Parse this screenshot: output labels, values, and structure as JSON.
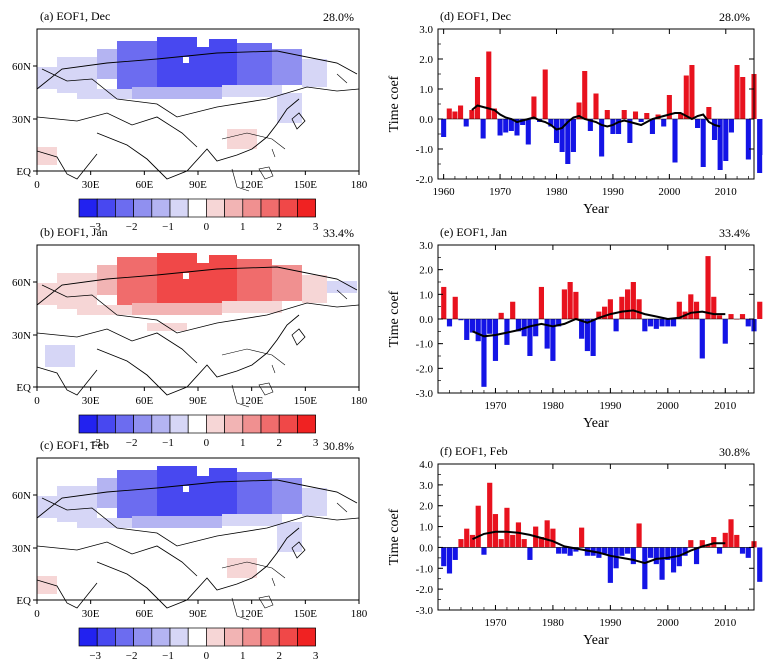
{
  "colors": {
    "positive": "#e8121e",
    "negative": "#1414e6",
    "curve": "#000000"
  },
  "colorbar": {
    "labels": [
      "−3",
      "−2",
      "−1",
      "0",
      "1",
      "2",
      "3"
    ],
    "colors": [
      "#2222f0",
      "#4848f0",
      "#6c6cf0",
      "#9090f0",
      "#b4b4f2",
      "#d6d6f6",
      "#ffffff",
      "#f6d6d6",
      "#f2b4b4",
      "#f09090",
      "#f06c6c",
      "#f04848",
      "#f02222"
    ]
  },
  "maps": [
    {
      "panel": "(a) EOF1, Dec",
      "pct": "28.0%",
      "pattern": "negative"
    },
    {
      "panel": "(b) EOF1, Jan",
      "pct": "33.4%",
      "pattern": "positive"
    },
    {
      "panel": "(c) EOF1, Feb",
      "pct": "30.8%",
      "pattern": "negative"
    }
  ],
  "map_axes": {
    "xticks": [
      "0",
      "30E",
      "60E",
      "90E",
      "120E",
      "150E",
      "180"
    ],
    "yticks": [
      "60N",
      "30N",
      "EQ"
    ]
  },
  "chart_data": [
    {
      "type": "bar",
      "panel": "(d) EOF1, Dec",
      "pct": "28.0%",
      "xlabel": "Year",
      "ylabel": "Time coef",
      "xlim": [
        1959,
        2015
      ],
      "ylim": [
        -2.0,
        3.0
      ],
      "yticks": [
        3.0,
        2.0,
        1.0,
        0.0,
        -1.0,
        -2.0
      ],
      "ytick_labels": [
        "3.0",
        "2.0",
        "1.0",
        "0.0",
        "-1.0",
        "-2.0"
      ],
      "xticks": [
        1960,
        1970,
        1980,
        1990,
        2000,
        2010
      ],
      "start_year": 1960,
      "values": [
        -0.6,
        0.35,
        0.25,
        0.45,
        -0.25,
        0.3,
        1.4,
        -0.65,
        2.25,
        0.35,
        -0.55,
        -0.45,
        -0.4,
        -0.55,
        -0.2,
        -0.85,
        0.75,
        -0.1,
        1.65,
        -0.25,
        -0.8,
        -1.1,
        -1.5,
        -1.1,
        0.55,
        1.6,
        -0.4,
        0.85,
        -1.25,
        0.3,
        -0.5,
        -0.5,
        0.3,
        -0.8,
        0.25,
        -0.1,
        0.2,
        -0.5,
        0.15,
        -0.25,
        0.8,
        -1.45,
        0.2,
        1.45,
        1.8,
        -0.3,
        -1.6,
        0.4,
        -0.7,
        -1.7,
        -1.4,
        -0.45,
        1.8,
        1.4,
        -1.35,
        1.5,
        -1.8,
        -1.2
      ],
      "running_mean": {
        "x": [
          1965,
          1966,
          1967,
          1968,
          1969,
          1970,
          1971,
          1972,
          1973,
          1974,
          1975,
          1976,
          1977,
          1978,
          1979,
          1980,
          1981,
          1982,
          1983,
          1984,
          1985,
          1986,
          1987,
          1988,
          1989,
          1990,
          1991,
          1992,
          1993,
          1994,
          1995,
          1996,
          1997,
          1998,
          1999,
          2000,
          2001,
          2002,
          2003,
          2004,
          2005,
          2006,
          2007,
          2008,
          2009
        ],
        "y": [
          0.3,
          0.45,
          0.4,
          0.35,
          0.3,
          0.15,
          0.05,
          0.0,
          -0.1,
          -0.05,
          0.0,
          0.05,
          -0.05,
          -0.1,
          -0.2,
          -0.35,
          -0.3,
          -0.1,
          0.05,
          0.1,
          0.0,
          -0.05,
          -0.1,
          -0.2,
          -0.25,
          -0.2,
          -0.1,
          -0.05,
          -0.1,
          -0.15,
          -0.2,
          -0.1,
          0.0,
          0.05,
          0.1,
          0.15,
          0.2,
          0.2,
          0.1,
          0.0,
          0.1,
          0.15,
          -0.1,
          -0.2,
          -0.25
        ]
      }
    },
    {
      "type": "bar",
      "panel": "(e) EOF1, Jan",
      "pct": "33.4%",
      "xlabel": "Year",
      "ylabel": "Time coef",
      "xlim": [
        1960,
        2015
      ],
      "ylim": [
        -3.0,
        3.0
      ],
      "yticks": [
        3.0,
        2.0,
        1.0,
        0.0,
        -1.0,
        -2.0,
        -3.0
      ],
      "ytick_labels": [
        "3.0",
        "2.0",
        "1.0",
        "0.0",
        "-1.0",
        "-2.0",
        "-3.0"
      ],
      "xticks": [
        1970,
        1980,
        1990,
        2000,
        2010
      ],
      "start_year": 1961,
      "values": [
        1.3,
        -0.3,
        0.9,
        -0.05,
        -0.85,
        -0.55,
        -0.9,
        -2.75,
        -0.6,
        -1.7,
        0.25,
        -1.05,
        0.7,
        -0.5,
        -0.7,
        -1.5,
        -0.7,
        1.3,
        -1.2,
        -1.7,
        -0.3,
        1.2,
        1.5,
        1.1,
        -0.8,
        -1.3,
        -1.5,
        0.3,
        0.5,
        0.8,
        -0.5,
        0.9,
        1.2,
        1.5,
        0.8,
        -0.5,
        -0.3,
        -0.4,
        -0.3,
        -0.3,
        -0.3,
        0.7,
        0.3,
        1.0,
        0.7,
        -1.6,
        2.55,
        0.9,
        0.15,
        -1.0,
        0.2,
        0.0,
        0.2,
        -0.3,
        -0.5,
        0.7
      ],
      "running_mean": {
        "x": [
          1966,
          1968,
          1970,
          1972,
          1974,
          1976,
          1978,
          1980,
          1982,
          1984,
          1986,
          1988,
          1990,
          1992,
          1994,
          1996,
          1998,
          2000,
          2002,
          2004,
          2006,
          2008,
          2010
        ],
        "y": [
          -0.5,
          -0.7,
          -0.65,
          -0.55,
          -0.45,
          -0.3,
          -0.2,
          -0.3,
          -0.2,
          0.0,
          -0.15,
          0.05,
          0.2,
          0.3,
          0.35,
          0.2,
          0.1,
          0.0,
          0.05,
          0.25,
          0.3,
          0.2,
          0.2
        ]
      }
    },
    {
      "type": "bar",
      "panel": "(f) EOF1, Feb",
      "pct": "30.8%",
      "xlabel": "Year",
      "ylabel": "Time coef",
      "xlim": [
        1960,
        2015
      ],
      "ylim": [
        -3.0,
        4.0
      ],
      "yticks": [
        4.0,
        3.0,
        2.0,
        1.0,
        0.0,
        -1.0,
        -2.0,
        -3.0
      ],
      "ytick_labels": [
        "4.0",
        "3.0",
        "2.0",
        "1.0",
        "0.0",
        "-1.0",
        "-2.0",
        "-3.0"
      ],
      "xticks": [
        1970,
        1980,
        1990,
        2000,
        2010
      ],
      "start_year": 1961,
      "values": [
        -0.9,
        -1.25,
        -0.6,
        0.4,
        0.9,
        0.6,
        2.0,
        -0.35,
        3.1,
        1.6,
        0.4,
        1.9,
        0.6,
        1.2,
        0.4,
        -0.6,
        1.0,
        0.5,
        1.3,
        0.9,
        -0.3,
        -0.3,
        -0.4,
        -0.2,
        0.95,
        -0.4,
        -0.4,
        -0.5,
        -0.3,
        -1.7,
        -1.0,
        -0.4,
        -0.3,
        -0.8,
        1.15,
        -2.0,
        -0.5,
        -0.8,
        -1.55,
        -0.6,
        -1.2,
        -0.9,
        -0.4,
        0.35,
        -0.8,
        0.35,
        0.1,
        0.5,
        -0.3,
        0.7,
        1.35,
        0.6,
        -0.3,
        -0.5,
        0.3,
        -1.65
      ],
      "running_mean": {
        "x": [
          1966,
          1968,
          1970,
          1972,
          1974,
          1976,
          1978,
          1980,
          1982,
          1984,
          1986,
          1988,
          1990,
          1992,
          1994,
          1996,
          1998,
          2000,
          2002,
          2004,
          2006,
          2008,
          2010
        ],
        "y": [
          0.4,
          0.65,
          0.75,
          0.75,
          0.7,
          0.6,
          0.45,
          0.3,
          0.05,
          -0.05,
          -0.15,
          -0.25,
          -0.4,
          -0.5,
          -0.6,
          -0.75,
          -0.55,
          -0.5,
          -0.4,
          -0.15,
          0.05,
          0.2,
          0.2
        ]
      }
    }
  ]
}
